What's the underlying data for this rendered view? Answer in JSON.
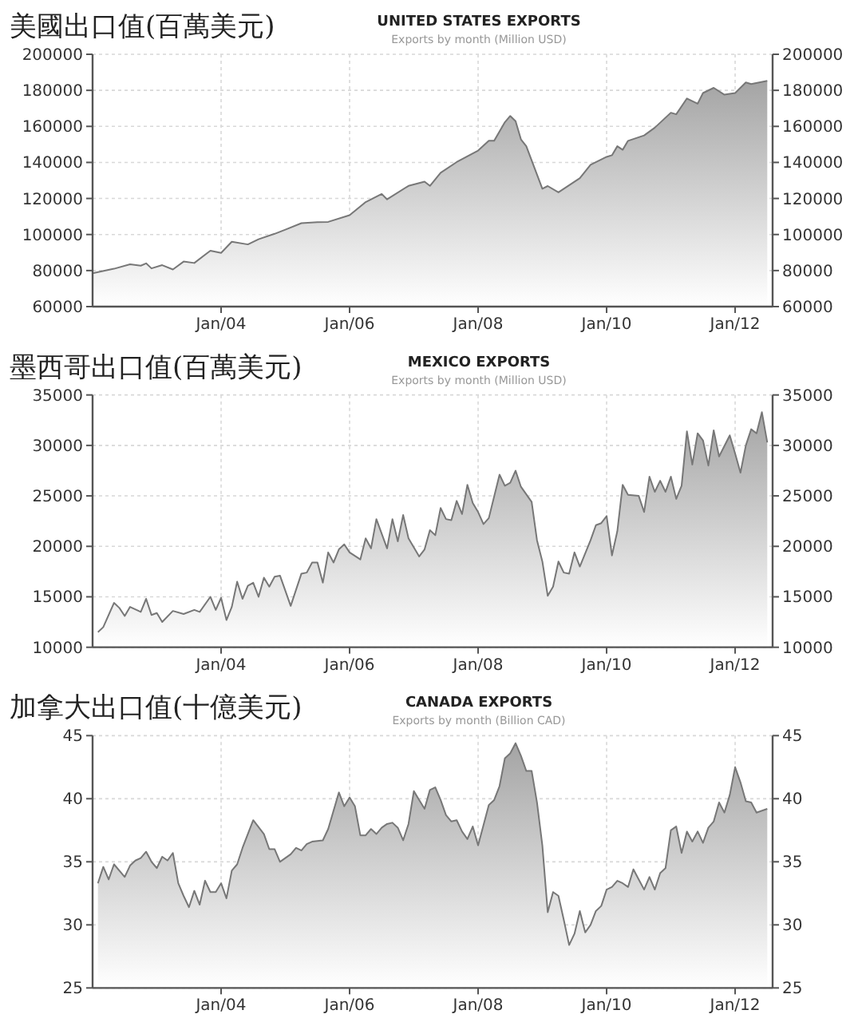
{
  "chart_data": [
    {
      "type": "area",
      "title": "UNITED STATES EXPORTS",
      "subtitle": "Exports by month (Million USD)",
      "annotations": [
        "美國出口值(百萬美元)"
      ],
      "color": "#777777",
      "grid": true,
      "x": [
        "2002-01",
        "2002-05",
        "2002-08",
        "2002-10",
        "2002-11",
        "2002-12",
        "2003-02",
        "2003-04",
        "2003-06",
        "2003-08",
        "2003-11",
        "2004-01",
        "2004-03",
        "2004-06",
        "2004-08",
        "2004-11",
        "2005-01",
        "2005-04",
        "2005-07",
        "2005-09",
        "2006-01",
        "2006-04",
        "2006-07",
        "2006-08",
        "2006-12",
        "2007-03",
        "2007-04",
        "2007-06",
        "2007-09",
        "2008-01",
        "2008-03",
        "2008-04",
        "2008-06",
        "2008-07",
        "2008-08",
        "2008-09",
        "2008-10",
        "2009-01",
        "2009-02",
        "2009-04",
        "2009-08",
        "2009-10",
        "2010-01",
        "2010-02",
        "2010-03",
        "2010-04",
        "2010-05",
        "2010-08",
        "2010-10",
        "2011-01",
        "2011-02",
        "2011-04",
        "2011-06",
        "2011-07",
        "2011-09",
        "2011-11",
        "2012-01",
        "2012-03",
        "2012-04",
        "2012-07"
      ],
      "values": [
        78500,
        81000,
        83500,
        82700,
        84000,
        81200,
        83000,
        80600,
        85000,
        84200,
        91000,
        89800,
        96000,
        94500,
        97400,
        100400,
        102700,
        106300,
        106900,
        107000,
        110700,
        118000,
        122500,
        119500,
        127000,
        129300,
        127000,
        134300,
        140200,
        146600,
        152000,
        152000,
        162300,
        165800,
        162900,
        152800,
        149000,
        125400,
        126900,
        123400,
        131300,
        138700,
        143100,
        144000,
        149000,
        147000,
        152000,
        155000,
        159300,
        167600,
        166700,
        175500,
        172600,
        178500,
        181400,
        177600,
        178500,
        184400,
        183500,
        185300
      ],
      "xlim": [
        "2002-01",
        "2012-08"
      ],
      "xticks": [
        {
          "value": "2004-01",
          "label": "Jan/04"
        },
        {
          "value": "2006-01",
          "label": "Jan/06"
        },
        {
          "value": "2008-01",
          "label": "Jan/08"
        },
        {
          "value": "2010-01",
          "label": "Jan/10"
        },
        {
          "value": "2012-01",
          "label": "Jan/12"
        }
      ],
      "ylim": [
        60000,
        200000
      ],
      "yticks": [
        60000,
        80000,
        100000,
        120000,
        140000,
        160000,
        180000,
        200000
      ],
      "y2lim": [
        60000,
        200000
      ],
      "y2ticks": [
        60000,
        80000,
        100000,
        120000,
        140000,
        160000,
        180000,
        200000
      ]
    },
    {
      "type": "area",
      "title": "MEXICO EXPORTS",
      "subtitle": "Exports by month (Million USD)",
      "annotations": [
        "墨西哥出口值(百萬美元)"
      ],
      "color": "#777777",
      "grid": true,
      "x": [
        "2002-02",
        "2002-03",
        "2002-05",
        "2002-06",
        "2002-07",
        "2002-08",
        "2002-10",
        "2002-11",
        "2002-12",
        "2003-01",
        "2003-02",
        "2003-04",
        "2003-06",
        "2003-08",
        "2003-09",
        "2003-11",
        "2003-12",
        "2004-01",
        "2004-02",
        "2004-03",
        "2004-04",
        "2004-05",
        "2004-06",
        "2004-07",
        "2004-08",
        "2004-09",
        "2004-10",
        "2004-11",
        "2004-12",
        "2005-02",
        "2005-04",
        "2005-05",
        "2005-06",
        "2005-07",
        "2005-08",
        "2005-09",
        "2005-10",
        "2005-11",
        "2005-12",
        "2006-01",
        "2006-03",
        "2006-04",
        "2006-05",
        "2006-06",
        "2006-08",
        "2006-09",
        "2006-10",
        "2006-11",
        "2006-12",
        "2007-02",
        "2007-03",
        "2007-04",
        "2007-05",
        "2007-06",
        "2007-07",
        "2007-08",
        "2007-09",
        "2007-10",
        "2007-11",
        "2007-12",
        "2008-01",
        "2008-02",
        "2008-03",
        "2008-05",
        "2008-06",
        "2008-07",
        "2008-08",
        "2008-09",
        "2008-11",
        "2008-12",
        "2009-01",
        "2009-02",
        "2009-03",
        "2009-04",
        "2009-05",
        "2009-06",
        "2009-07",
        "2009-08",
        "2009-10",
        "2009-11",
        "2009-12",
        "2010-01",
        "2010-02",
        "2010-03",
        "2010-04",
        "2010-05",
        "2010-07",
        "2010-08",
        "2010-09",
        "2010-10",
        "2010-11",
        "2010-12",
        "2011-01",
        "2011-02",
        "2011-03",
        "2011-04",
        "2011-05",
        "2011-06",
        "2011-07",
        "2011-08",
        "2011-09",
        "2011-10",
        "2011-12",
        "2012-01",
        "2012-02",
        "2012-03",
        "2012-04",
        "2012-05",
        "2012-06",
        "2012-07"
      ],
      "values": [
        11500,
        12000,
        14400,
        13900,
        13100,
        14000,
        13500,
        14800,
        13200,
        13400,
        12500,
        13600,
        13300,
        13700,
        13500,
        15000,
        13700,
        14900,
        12700,
        14000,
        16500,
        14800,
        16100,
        16400,
        15000,
        16900,
        16000,
        17000,
        17100,
        14100,
        17300,
        17400,
        18400,
        18400,
        16400,
        19400,
        18400,
        19700,
        20200,
        19400,
        18700,
        20800,
        19800,
        22700,
        19800,
        22700,
        20500,
        23100,
        20800,
        19000,
        19700,
        21600,
        21100,
        23800,
        22700,
        22600,
        24500,
        23200,
        26100,
        24300,
        23400,
        22200,
        22800,
        27100,
        26000,
        26300,
        27500,
        25900,
        24400,
        20600,
        18500,
        15100,
        16000,
        18500,
        17400,
        17300,
        19400,
        18000,
        20600,
        22100,
        22300,
        23000,
        19100,
        21500,
        26100,
        25100,
        25000,
        23400,
        26900,
        25400,
        26500,
        25400,
        26900,
        24700,
        26000,
        31400,
        28100,
        31200,
        30500,
        28000,
        31500,
        28900,
        31000,
        29200,
        27300,
        30000,
        31600,
        31200,
        33300,
        30300
      ],
      "xlim": [
        "2002-01",
        "2012-08"
      ],
      "xticks": [
        {
          "value": "2004-01",
          "label": "Jan/04"
        },
        {
          "value": "2006-01",
          "label": "Jan/06"
        },
        {
          "value": "2008-01",
          "label": "Jan/08"
        },
        {
          "value": "2010-01",
          "label": "Jan/10"
        },
        {
          "value": "2012-01",
          "label": "Jan/12"
        }
      ],
      "ylim": [
        10000,
        35000
      ],
      "yticks": [
        10000,
        15000,
        20000,
        25000,
        30000,
        35000
      ],
      "y2lim": [
        10000,
        35000
      ],
      "y2ticks": [
        10000,
        15000,
        20000,
        25000,
        30000,
        35000
      ]
    },
    {
      "type": "area",
      "title": "CANADA EXPORTS",
      "subtitle": "Exports by month (Billion CAD)",
      "annotations": [
        "加拿大出口值(十億美元)"
      ],
      "color": "#777777",
      "grid": true,
      "x": [
        "2002-02",
        "2002-03",
        "2002-04",
        "2002-05",
        "2002-07",
        "2002-08",
        "2002-09",
        "2002-10",
        "2002-11",
        "2002-12",
        "2003-01",
        "2003-02",
        "2003-03",
        "2003-04",
        "2003-05",
        "2003-06",
        "2003-07",
        "2003-08",
        "2003-09",
        "2003-10",
        "2003-11",
        "2003-12",
        "2004-01",
        "2004-02",
        "2004-03",
        "2004-04",
        "2004-05",
        "2004-07",
        "2004-09",
        "2004-10",
        "2004-11",
        "2004-12",
        "2005-02",
        "2005-03",
        "2005-04",
        "2005-05",
        "2005-06",
        "2005-08",
        "2005-09",
        "2005-11",
        "2005-12",
        "2006-01",
        "2006-02",
        "2006-03",
        "2006-04",
        "2006-05",
        "2006-06",
        "2006-07",
        "2006-08",
        "2006-09",
        "2006-10",
        "2006-11",
        "2006-12",
        "2007-01",
        "2007-02",
        "2007-03",
        "2007-04",
        "2007-05",
        "2007-06",
        "2007-07",
        "2007-08",
        "2007-09",
        "2007-10",
        "2007-11",
        "2007-12",
        "2008-01",
        "2008-02",
        "2008-03",
        "2008-04",
        "2008-05",
        "2008-06",
        "2008-07",
        "2008-08",
        "2008-09",
        "2008-10",
        "2008-11",
        "2008-12",
        "2009-01",
        "2009-02",
        "2009-03",
        "2009-04",
        "2009-05",
        "2009-06",
        "2009-07",
        "2009-08",
        "2009-09",
        "2009-10",
        "2009-11",
        "2009-12",
        "2010-01",
        "2010-02",
        "2010-03",
        "2010-04",
        "2010-05",
        "2010-06",
        "2010-07",
        "2010-08",
        "2010-09",
        "2010-10",
        "2010-11",
        "2010-12",
        "2011-01",
        "2011-02",
        "2011-03",
        "2011-04",
        "2011-05",
        "2011-06",
        "2011-07",
        "2011-08",
        "2011-09",
        "2011-10",
        "2011-11",
        "2011-12",
        "2012-01",
        "2012-02",
        "2012-03",
        "2012-04",
        "2012-05",
        "2012-07"
      ],
      "values": [
        33.3,
        34.6,
        33.6,
        34.8,
        33.8,
        34.7,
        35.1,
        35.3,
        35.8,
        35.0,
        34.5,
        35.4,
        35.1,
        35.7,
        33.3,
        32.3,
        31.4,
        32.7,
        31.6,
        33.5,
        32.6,
        32.6,
        33.3,
        32.1,
        34.3,
        34.8,
        36.1,
        38.3,
        37.2,
        36.0,
        36.0,
        35.0,
        35.6,
        36.1,
        35.9,
        36.4,
        36.6,
        36.7,
        37.6,
        40.5,
        39.4,
        40.1,
        39.4,
        37.1,
        37.1,
        37.6,
        37.2,
        37.7,
        38.0,
        38.1,
        37.7,
        36.7,
        38.0,
        40.6,
        39.9,
        39.2,
        40.7,
        40.9,
        39.9,
        38.7,
        38.2,
        38.3,
        37.4,
        36.8,
        37.8,
        36.3,
        37.9,
        39.5,
        39.9,
        41.0,
        43.2,
        43.6,
        44.4,
        43.4,
        42.2,
        42.2,
        39.7,
        36.3,
        31.0,
        32.6,
        32.3,
        30.4,
        28.4,
        29.3,
        31.1,
        29.4,
        30.0,
        31.1,
        31.5,
        32.8,
        33.0,
        33.5,
        33.3,
        33.0,
        34.4,
        33.6,
        32.8,
        33.8,
        32.8,
        34.1,
        34.5,
        37.5,
        37.8,
        35.7,
        37.4,
        36.6,
        37.4,
        36.5,
        37.7,
        38.2,
        39.7,
        38.9,
        40.3,
        42.5,
        41.3,
        39.8,
        39.7,
        38.9,
        39.2
      ],
      "xlim": [
        "2002-01",
        "2012-08"
      ],
      "xticks": [
        {
          "value": "2004-01",
          "label": "Jan/04"
        },
        {
          "value": "2006-01",
          "label": "Jan/06"
        },
        {
          "value": "2008-01",
          "label": "Jan/08"
        },
        {
          "value": "2010-01",
          "label": "Jan/10"
        },
        {
          "value": "2012-01",
          "label": "Jan/12"
        }
      ],
      "ylim": [
        25,
        45
      ],
      "yticks": [
        25,
        30,
        35,
        40,
        45
      ],
      "y2lim": [
        25,
        45
      ],
      "y2ticks": [
        25,
        30,
        35,
        40,
        45
      ]
    }
  ]
}
